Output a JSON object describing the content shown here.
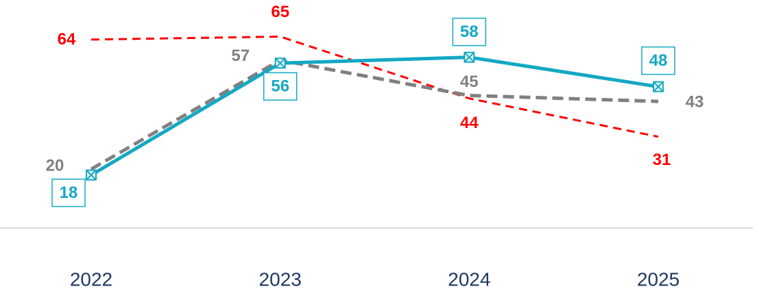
{
  "chart_data": {
    "type": "line",
    "categories": [
      "2022",
      "2023",
      "2024",
      "2025"
    ],
    "series": [
      {
        "color": "#ff0000",
        "values": [
          64,
          65,
          44,
          31
        ]
      },
      {
        "color": "#808080",
        "values": [
          20,
          57,
          45,
          43
        ]
      },
      {
        "color": "#13a8c4",
        "values": [
          18,
          56,
          58,
          48
        ]
      }
    ],
    "ylim": [
      0,
      70
    ]
  }
}
